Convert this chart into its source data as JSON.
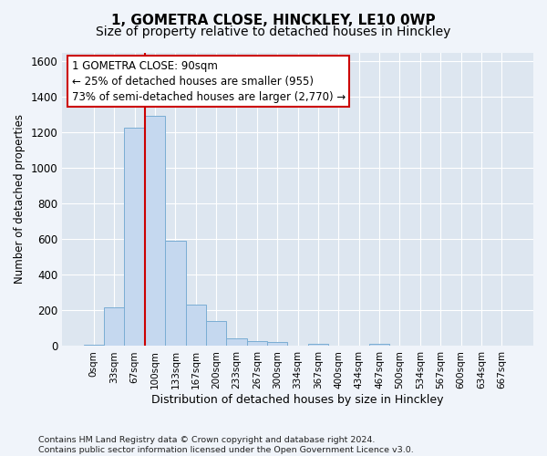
{
  "title": "1, GOMETRA CLOSE, HINCKLEY, LE10 0WP",
  "subtitle": "Size of property relative to detached houses in Hinckley",
  "xlabel": "Distribution of detached houses by size in Hinckley",
  "ylabel": "Number of detached properties",
  "bar_color": "#c5d8ef",
  "bar_edge_color": "#7aadd4",
  "background_color": "#dde6f0",
  "grid_color": "#ffffff",
  "annotation_text": "1 GOMETRA CLOSE: 90sqm\n← 25% of detached houses are smaller (955)\n73% of semi-detached houses are larger (2,770) →",
  "vline_color": "#cc0000",
  "ylim": [
    0,
    1650
  ],
  "categories": [
    "0sqm",
    "33sqm",
    "67sqm",
    "100sqm",
    "133sqm",
    "167sqm",
    "200sqm",
    "233sqm",
    "267sqm",
    "300sqm",
    "334sqm",
    "367sqm",
    "400sqm",
    "434sqm",
    "467sqm",
    "500sqm",
    "534sqm",
    "567sqm",
    "600sqm",
    "634sqm",
    "667sqm"
  ],
  "bar_heights": [
    10,
    220,
    1225,
    1295,
    590,
    235,
    140,
    45,
    30,
    25,
    0,
    15,
    0,
    0,
    15,
    0,
    0,
    0,
    0,
    0,
    0
  ],
  "footer_text": "Contains HM Land Registry data © Crown copyright and database right 2024.\nContains public sector information licensed under the Open Government Licence v3.0.",
  "title_fontsize": 11,
  "subtitle_fontsize": 10,
  "annotation_fontsize": 8.5,
  "annotation_box_color": "#ffffff",
  "annotation_box_edge": "#cc0000",
  "yticks": [
    0,
    200,
    400,
    600,
    800,
    1000,
    1200,
    1400,
    1600
  ],
  "fig_bg": "#f0f4fa"
}
